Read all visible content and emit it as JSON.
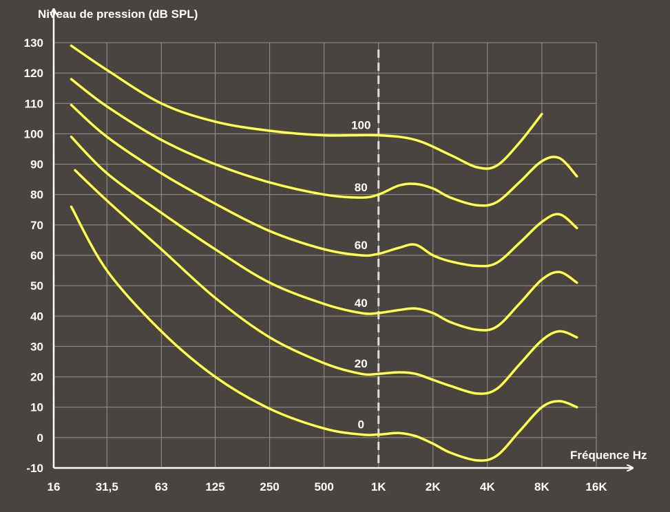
{
  "chart_data": {
    "type": "line",
    "title": "",
    "ylabel": "Niveau de pression (dB SPL)",
    "xlabel": "Fréquence Hz",
    "x_scale": "log",
    "xlim": [
      16,
      16000
    ],
    "ylim": [
      -10,
      130
    ],
    "grid": true,
    "x_ticks": [
      {
        "value": 16,
        "label": "16"
      },
      {
        "value": 31.5,
        "label": "31,5"
      },
      {
        "value": 63,
        "label": "63"
      },
      {
        "value": 125,
        "label": "125"
      },
      {
        "value": 250,
        "label": "250"
      },
      {
        "value": 500,
        "label": "500"
      },
      {
        "value": 1000,
        "label": "1K"
      },
      {
        "value": 2000,
        "label": "2K"
      },
      {
        "value": 4000,
        "label": "4K"
      },
      {
        "value": 8000,
        "label": "8K"
      },
      {
        "value": 16000,
        "label": "16K"
      }
    ],
    "y_ticks": [
      -10,
      0,
      10,
      20,
      30,
      40,
      50,
      60,
      70,
      80,
      90,
      100,
      110,
      120,
      130
    ],
    "reference_line": {
      "x": 1000,
      "style": "dashed"
    },
    "curve_color": "#ffff4d",
    "series": [
      {
        "name": "100",
        "label_x": 800,
        "points": [
          [
            20,
            129
          ],
          [
            31.5,
            121
          ],
          [
            63,
            110
          ],
          [
            125,
            104
          ],
          [
            250,
            101
          ],
          [
            500,
            99.5
          ],
          [
            1000,
            99.5
          ],
          [
            1600,
            98
          ],
          [
            2500,
            93
          ],
          [
            3500,
            89
          ],
          [
            4500,
            89.5
          ],
          [
            6000,
            97
          ],
          [
            8000,
            106.5
          ]
        ]
      },
      {
        "name": "80",
        "label_x": 800,
        "points": [
          [
            20,
            118
          ],
          [
            31.5,
            109
          ],
          [
            63,
            98
          ],
          [
            125,
            90
          ],
          [
            250,
            84
          ],
          [
            500,
            80
          ],
          [
            800,
            79
          ],
          [
            1000,
            80
          ],
          [
            1300,
            83
          ],
          [
            1600,
            83.5
          ],
          [
            2000,
            82
          ],
          [
            2500,
            79
          ],
          [
            3500,
            76.5
          ],
          [
            4500,
            77.5
          ],
          [
            6000,
            84
          ],
          [
            8000,
            91
          ],
          [
            10000,
            92
          ],
          [
            12500,
            86
          ]
        ]
      },
      {
        "name": "60",
        "label_x": 800,
        "points": [
          [
            20,
            109.5
          ],
          [
            31.5,
            99
          ],
          [
            63,
            87
          ],
          [
            125,
            77
          ],
          [
            250,
            68
          ],
          [
            500,
            62
          ],
          [
            800,
            60
          ],
          [
            1000,
            60.5
          ],
          [
            1300,
            62.5
          ],
          [
            1600,
            63.5
          ],
          [
            2000,
            60
          ],
          [
            2500,
            58
          ],
          [
            3500,
            56.5
          ],
          [
            4500,
            57.5
          ],
          [
            6000,
            64
          ],
          [
            8000,
            71
          ],
          [
            10000,
            73.5
          ],
          [
            12500,
            69
          ]
        ]
      },
      {
        "name": "40",
        "label_x": 800,
        "points": [
          [
            20,
            99
          ],
          [
            31.5,
            87
          ],
          [
            63,
            74
          ],
          [
            125,
            62
          ],
          [
            250,
            51
          ],
          [
            500,
            44
          ],
          [
            800,
            41
          ],
          [
            1000,
            41
          ],
          [
            1300,
            42
          ],
          [
            1600,
            42.5
          ],
          [
            2000,
            41
          ],
          [
            2500,
            38
          ],
          [
            3500,
            35.5
          ],
          [
            4500,
            36.5
          ],
          [
            6000,
            44
          ],
          [
            8000,
            52
          ],
          [
            10000,
            54.5
          ],
          [
            12500,
            51
          ]
        ]
      },
      {
        "name": "20",
        "label_x": 800,
        "points": [
          [
            21,
            88
          ],
          [
            31.5,
            78
          ],
          [
            63,
            62
          ],
          [
            125,
            46
          ],
          [
            250,
            33
          ],
          [
            500,
            24.5
          ],
          [
            800,
            21
          ],
          [
            1000,
            21
          ],
          [
            1300,
            21.5
          ],
          [
            1600,
            21
          ],
          [
            2000,
            19
          ],
          [
            2500,
            17
          ],
          [
            3500,
            14.5
          ],
          [
            4500,
            16
          ],
          [
            6000,
            24
          ],
          [
            8000,
            32
          ],
          [
            10000,
            35
          ],
          [
            12500,
            33
          ]
        ]
      },
      {
        "name": "0",
        "label_x": 800,
        "points": [
          [
            20,
            76
          ],
          [
            31.5,
            55
          ],
          [
            63,
            35
          ],
          [
            125,
            20
          ],
          [
            250,
            9.5
          ],
          [
            500,
            3
          ],
          [
            800,
            1
          ],
          [
            1000,
            1
          ],
          [
            1300,
            1.5
          ],
          [
            1600,
            0.5
          ],
          [
            2000,
            -2
          ],
          [
            2500,
            -5
          ],
          [
            3500,
            -7.5
          ],
          [
            4500,
            -6
          ],
          [
            6000,
            2
          ],
          [
            8000,
            10
          ],
          [
            10000,
            12
          ],
          [
            12500,
            10
          ]
        ]
      }
    ]
  }
}
